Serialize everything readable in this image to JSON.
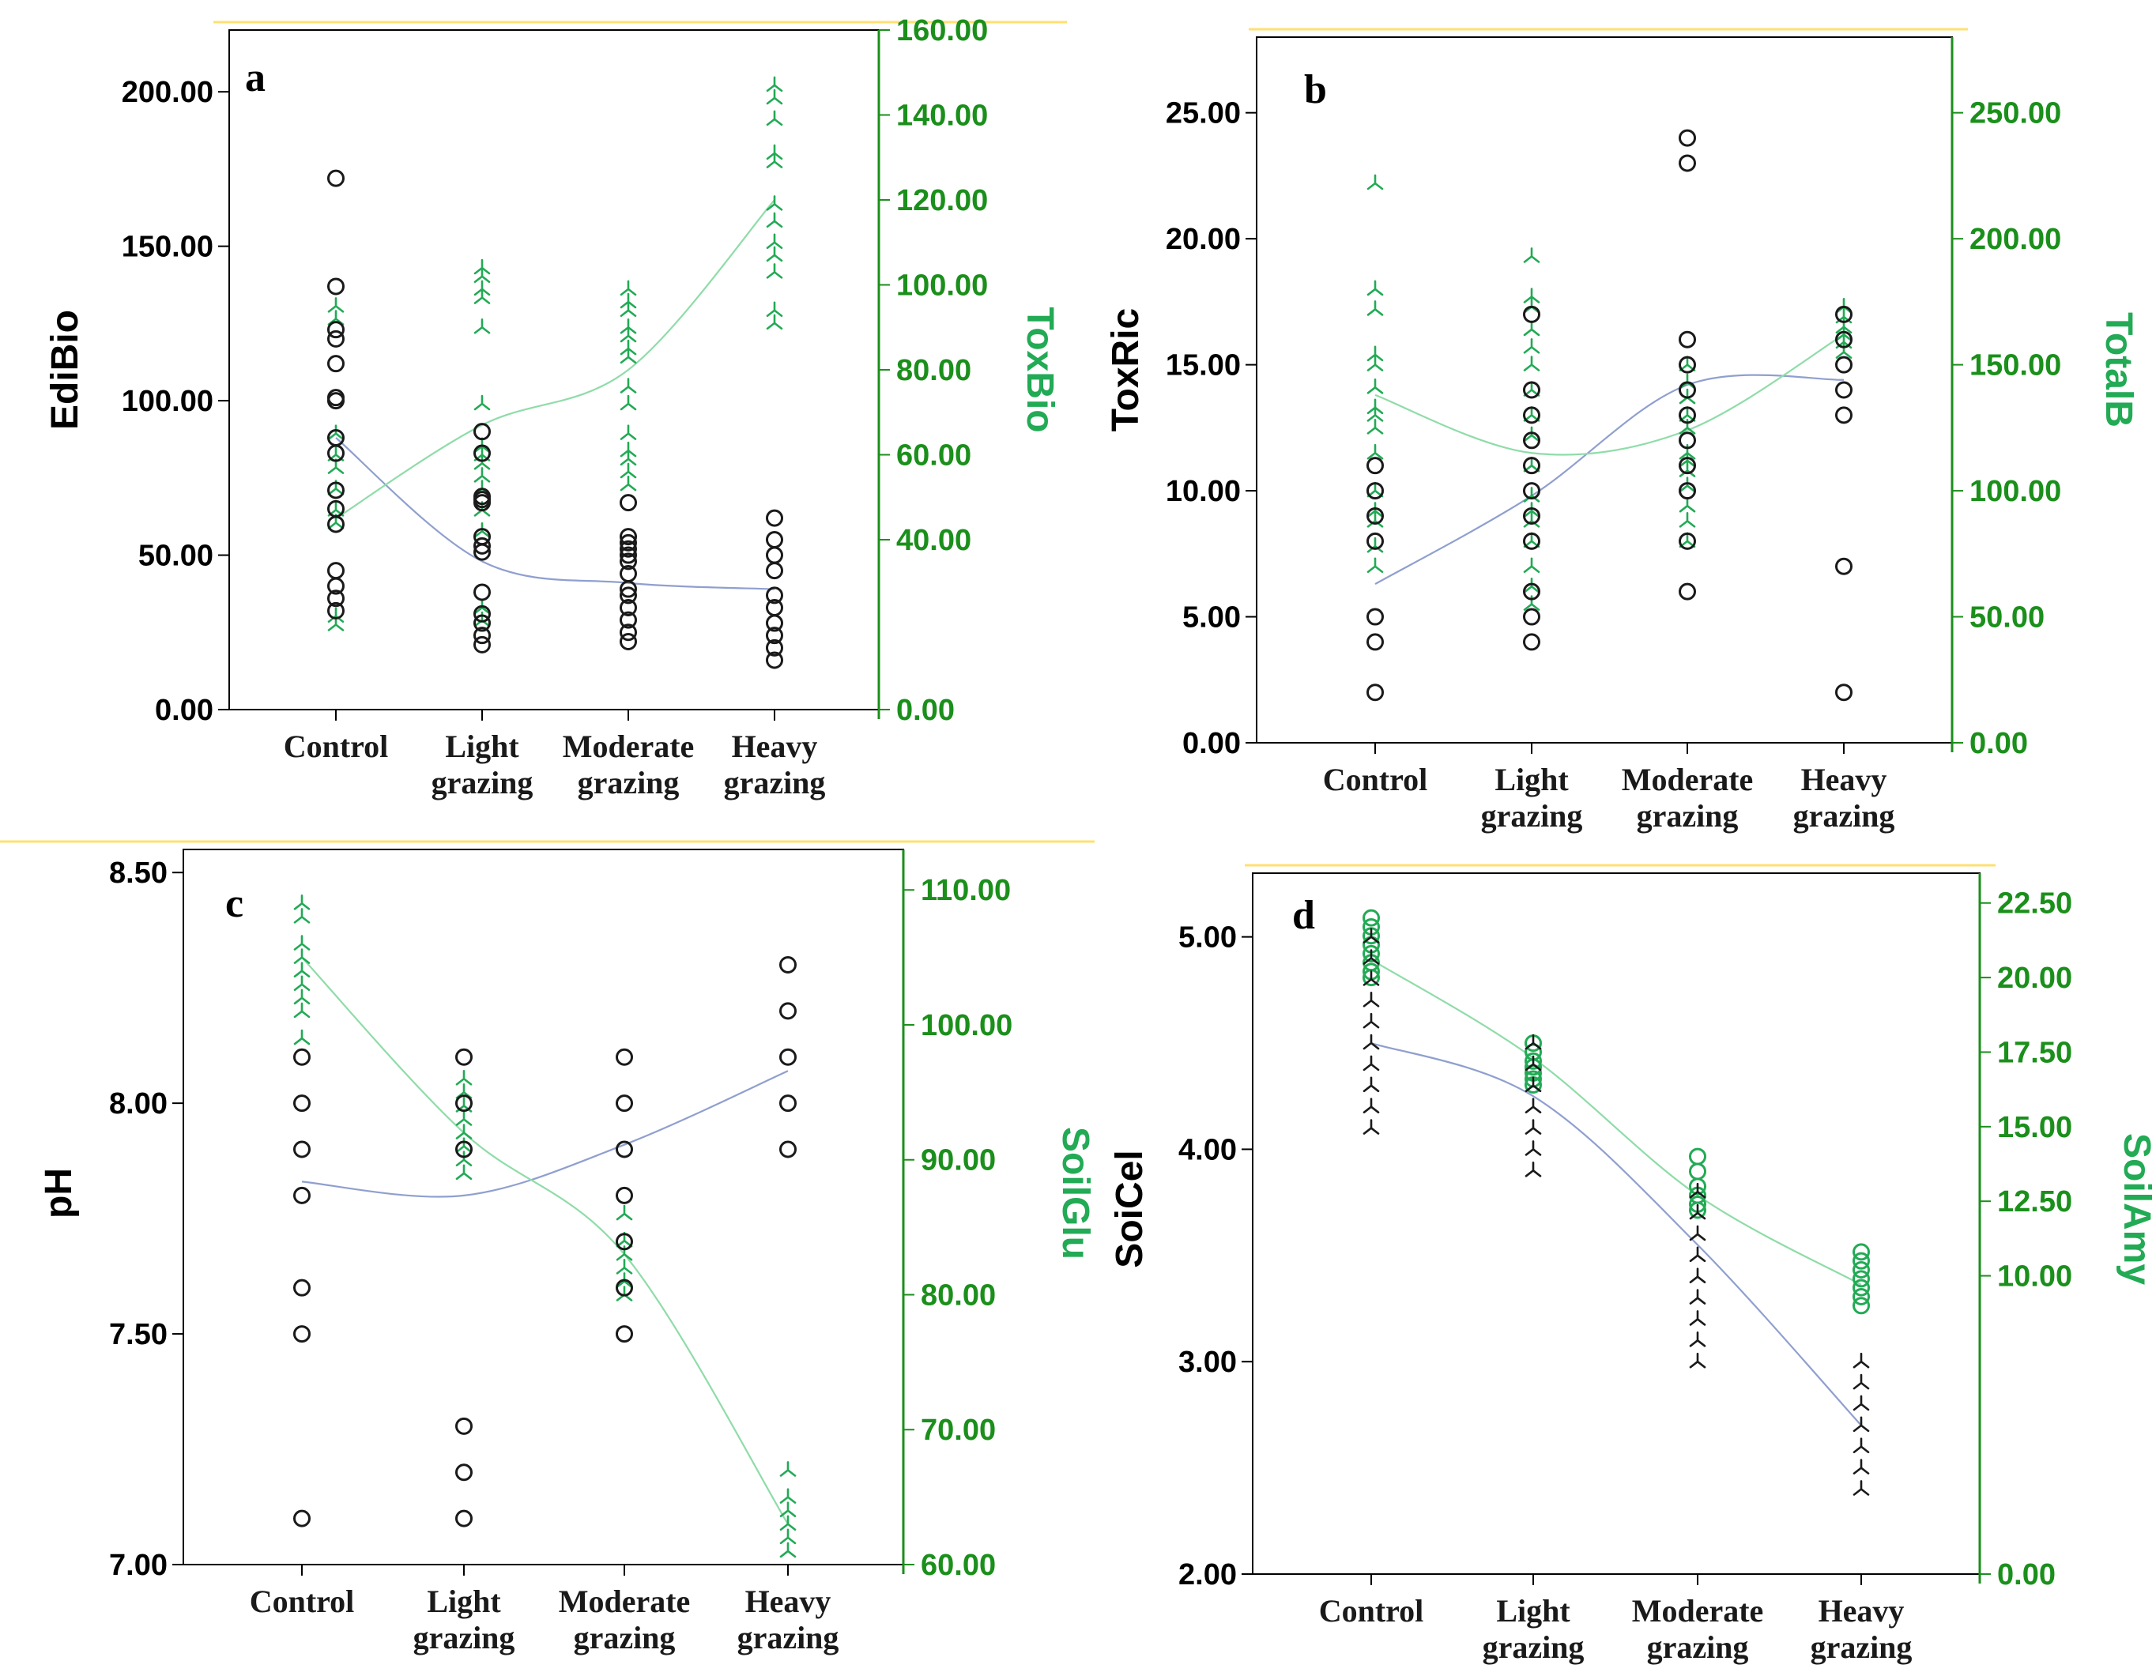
{
  "colors": {
    "black": "#1a1a1a",
    "green": "#22aa55",
    "green_axis": "#1b8f1b",
    "fit_blue": "#8f9fcf",
    "fit_green": "#8fdca8",
    "frame_yellow": "#ffe070"
  },
  "chart_data": [
    {
      "panel": "a",
      "type": "scatter",
      "categories": [
        "Control",
        "Light grazing",
        "Moderate grazing",
        "Heavy grazing"
      ],
      "x_label_lines": [
        [
          "Control"
        ],
        [
          "Light",
          "grazing"
        ],
        [
          "Moderate",
          "grazing"
        ],
        [
          "Heavy",
          "grazing"
        ]
      ],
      "left": {
        "label": "EdiBio",
        "ylim": [
          0,
          220
        ],
        "ticks": [
          "0.00",
          "50.00",
          "100.00",
          "150.00",
          "200.00"
        ],
        "tick_values": [
          0,
          50,
          100,
          150,
          200
        ],
        "marker": "circle",
        "values": [
          [
            172,
            137,
            123,
            120,
            112,
            101,
            100,
            88,
            83,
            71,
            65,
            60,
            45,
            40,
            36,
            32
          ],
          [
            90,
            83,
            69,
            68,
            67,
            56,
            53,
            51,
            38,
            31,
            28,
            24,
            21
          ],
          [
            67,
            56,
            54,
            52,
            50,
            48,
            44,
            39,
            37,
            33,
            29,
            25,
            22
          ],
          [
            62,
            55,
            50,
            45,
            37,
            33,
            28,
            24,
            20,
            16
          ]
        ],
        "fit": [
          88,
          48,
          41,
          39
        ]
      },
      "right": {
        "label": "ToxBio",
        "ylim": [
          0,
          160
        ],
        "ticks": [
          "0.00",
          "40.00",
          "60.00",
          "80.00",
          "100.00",
          "120.00",
          "140.00",
          "160.00"
        ],
        "tick_values": [
          0,
          40,
          60,
          80,
          100,
          120,
          140,
          160
        ],
        "marker": "tri",
        "values": [
          [
            95,
            92,
            65,
            60,
            57,
            52,
            47,
            44,
            22,
            20
          ],
          [
            104,
            102,
            99,
            97,
            90,
            72,
            62,
            60,
            58,
            55,
            52,
            47,
            42,
            24,
            21
          ],
          [
            99,
            96,
            94,
            90,
            88,
            85,
            83,
            76,
            72,
            65,
            61,
            59,
            56,
            53
          ],
          [
            147,
            144,
            139,
            131,
            129,
            119,
            115,
            110,
            107,
            103,
            94,
            91
          ]
        ],
        "fit": [
          45,
          67,
          80,
          120
        ]
      }
    },
    {
      "panel": "b",
      "type": "scatter",
      "categories": [
        "Control",
        "Light grazing",
        "Moderate grazing",
        "Heavy grazing"
      ],
      "x_label_lines": [
        [
          "Control"
        ],
        [
          "Light",
          "grazing"
        ],
        [
          "Moderate",
          "grazing"
        ],
        [
          "Heavy",
          "grazing"
        ]
      ],
      "left": {
        "label": "ToxRic",
        "ylim": [
          0,
          28
        ],
        "ticks": [
          "0.00",
          "5.00",
          "10.00",
          "15.00",
          "20.00",
          "25.00"
        ],
        "tick_values": [
          0,
          5,
          10,
          15,
          20,
          25
        ],
        "marker": "circle",
        "values": [
          [
            11,
            10,
            9,
            8,
            5,
            4,
            2
          ],
          [
            17,
            14,
            13,
            12,
            11,
            10,
            9,
            8,
            6,
            5,
            4
          ],
          [
            24,
            23,
            16,
            15,
            14,
            13,
            12,
            11,
            10,
            8,
            6
          ],
          [
            17,
            16,
            15,
            14,
            13,
            7,
            2
          ]
        ],
        "fit": [
          6.3,
          9.8,
          14.2,
          14.4
        ]
      },
      "right": {
        "label": "TotalB",
        "ylim": [
          0,
          280
        ],
        "ticks": [
          "0.00",
          "50.00",
          "100.00",
          "150.00",
          "200.00",
          "250.00"
        ],
        "tick_values": [
          0,
          50,
          100,
          150,
          200,
          250
        ],
        "marker": "tri",
        "values": [
          [
            222,
            180,
            172,
            154,
            150,
            141,
            133,
            130,
            125,
            115,
            100,
            92,
            88,
            78,
            70
          ],
          [
            193,
            177,
            173,
            164,
            157,
            150,
            140,
            130,
            122,
            110,
            98,
            92,
            88,
            80,
            70,
            62,
            55
          ],
          [
            150,
            143,
            137,
            130,
            125,
            115,
            112,
            108,
            102,
            94,
            88,
            80
          ],
          [
            173,
            169,
            165,
            162,
            159,
            155
          ]
        ],
        "fit": [
          138,
          115,
          124,
          162
        ]
      }
    },
    {
      "panel": "c",
      "type": "scatter",
      "categories": [
        "Control",
        "Light grazing",
        "Moderate grazing",
        "Heavy grazing"
      ],
      "x_label_lines": [
        [
          "Control"
        ],
        [
          "Light",
          "grazing"
        ],
        [
          "Moderate",
          "grazing"
        ],
        [
          "Heavy",
          "grazing"
        ]
      ],
      "left": {
        "label": "pH",
        "ylim": [
          7.0,
          8.55
        ],
        "ticks": [
          "7.00",
          "7.50",
          "8.00",
          "8.50"
        ],
        "tick_values": [
          7.0,
          7.5,
          8.0,
          8.5
        ],
        "marker": "circle",
        "values": [
          [
            8.1,
            8.0,
            7.9,
            7.8,
            7.6,
            7.5,
            7.1
          ],
          [
            8.1,
            8.0,
            7.9,
            7.3,
            7.2,
            7.1
          ],
          [
            8.1,
            8.0,
            7.9,
            7.8,
            7.7,
            7.6,
            7.5
          ],
          [
            8.3,
            8.2,
            8.1,
            8.0,
            7.9
          ]
        ],
        "fit": [
          7.83,
          7.8,
          7.91,
          8.07
        ]
      },
      "right": {
        "label": "SoilGlu",
        "ylim": [
          60,
          113
        ],
        "ticks": [
          "60.00",
          "70.00",
          "80.00",
          "90.00",
          "100.00",
          "110.00"
        ],
        "tick_values": [
          60,
          70,
          80,
          90,
          100,
          110
        ],
        "marker": "tri",
        "values": [
          [
            109,
            108,
            106,
            105,
            104,
            103,
            102,
            101,
            99
          ],
          [
            96,
            95,
            94,
            93,
            92,
            91,
            90,
            89
          ],
          [
            86,
            84,
            83,
            82,
            81,
            80
          ],
          [
            67,
            65,
            64,
            63,
            62,
            61
          ]
        ],
        "fit": [
          105,
          92,
          83,
          63
        ]
      }
    },
    {
      "panel": "d",
      "type": "scatter",
      "categories": [
        "Control",
        "Light grazing",
        "Moderate grazing",
        "Heavy grazing"
      ],
      "x_label_lines": [
        [
          "Control"
        ],
        [
          "Light",
          "grazing"
        ],
        [
          "Moderate",
          "grazing"
        ],
        [
          "Heavy",
          "grazing"
        ]
      ],
      "left": {
        "label": "SoiCel",
        "ylim": [
          2.0,
          5.3
        ],
        "ticks": [
          "2.00",
          "3.00",
          "4.00",
          "5.00"
        ],
        "tick_values": [
          2,
          3,
          4,
          5
        ],
        "marker": "tri-black",
        "values": [
          [
            5.0,
            4.9,
            4.8,
            4.7,
            4.6,
            4.5,
            4.4,
            4.3,
            4.2,
            4.1
          ],
          [
            4.5,
            4.4,
            4.3,
            4.2,
            4.1,
            4.0,
            3.9
          ],
          [
            3.8,
            3.7,
            3.6,
            3.5,
            3.4,
            3.3,
            3.2,
            3.1,
            3.0
          ],
          [
            3.0,
            2.9,
            2.8,
            2.7,
            2.6,
            2.5,
            2.4
          ]
        ],
        "fit": [
          4.5,
          4.25,
          3.55,
          2.7
        ]
      },
      "right": {
        "label": "SoilAmy",
        "ylim": [
          0,
          23.5
        ],
        "ticks": [
          "0.00",
          "10.00",
          "12.50",
          "15.00",
          "17.50",
          "20.00",
          "22.50"
        ],
        "tick_values": [
          0,
          10,
          12.5,
          15,
          17.5,
          20,
          22.5
        ],
        "marker": "circle-green",
        "values": [
          [
            22,
            21.7,
            21.4,
            21.1,
            20.8,
            20.5,
            20.2,
            20.0
          ],
          [
            17.8,
            17.5,
            17.2,
            17.0,
            16.8,
            16.6,
            16.4
          ],
          [
            14,
            13.5,
            13.0,
            12.7,
            12.4,
            12.2
          ],
          [
            10.8,
            10.5,
            10.2,
            9.9,
            9.6,
            9.3,
            9.0
          ]
        ],
        "fit": [
          20.6,
          17.3,
          12.7,
          9.7
        ]
      }
    }
  ]
}
